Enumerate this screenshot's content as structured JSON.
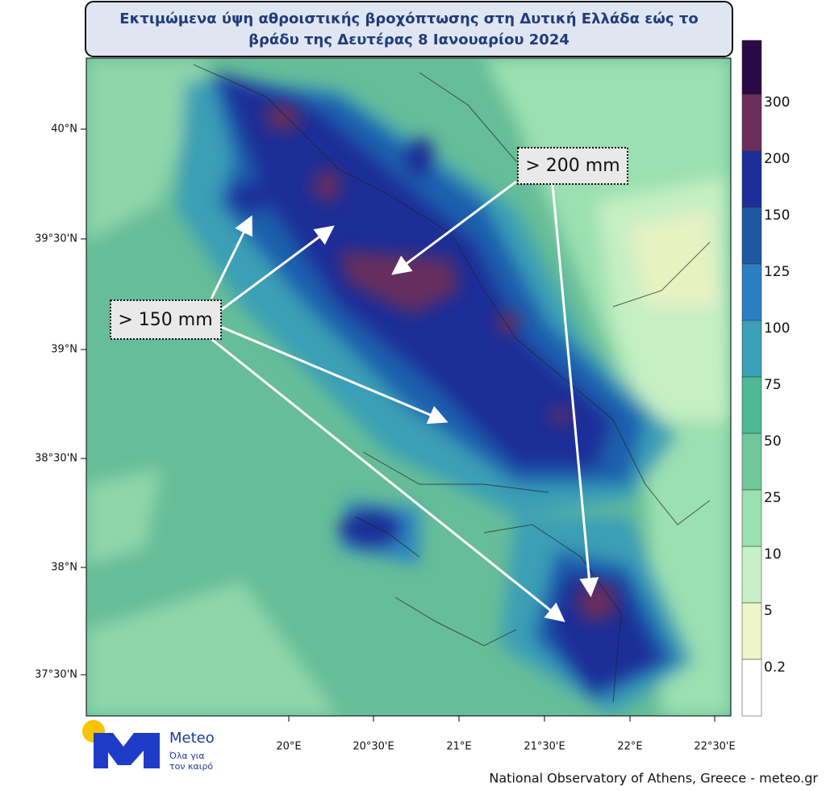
{
  "header": {
    "title_line1": "Εκτιμώμενα ύψη αθροιστικής βροχόπτωσης στη Δυτική Ελλάδα εώς το",
    "title_line2": "βράδυ της Δευτέρας 8 Ιανουαρίου 2024"
  },
  "map": {
    "lat_labels": [
      "40°N",
      "39°30'N",
      "39°N",
      "38°30'N",
      "38°N",
      "37°30'N"
    ],
    "lon_labels": [
      "20°E",
      "20°30'E",
      "21°E",
      "21°30'E",
      "22°E",
      "22°30'E"
    ],
    "annotations": [
      "> 200 mm",
      "> 150 mm"
    ]
  },
  "legend": {
    "labels": [
      "300",
      "200",
      "150",
      "125",
      "100",
      "75",
      "50",
      "25",
      "10",
      "5",
      "0.2"
    ]
  },
  "logo": {
    "name": "Meteo",
    "tagline_line1": "Όλα για",
    "tagline_line2": "τον καιρό"
  },
  "footer": {
    "credit": "National Observatory of Athens, Greece - meteo.gr"
  }
}
